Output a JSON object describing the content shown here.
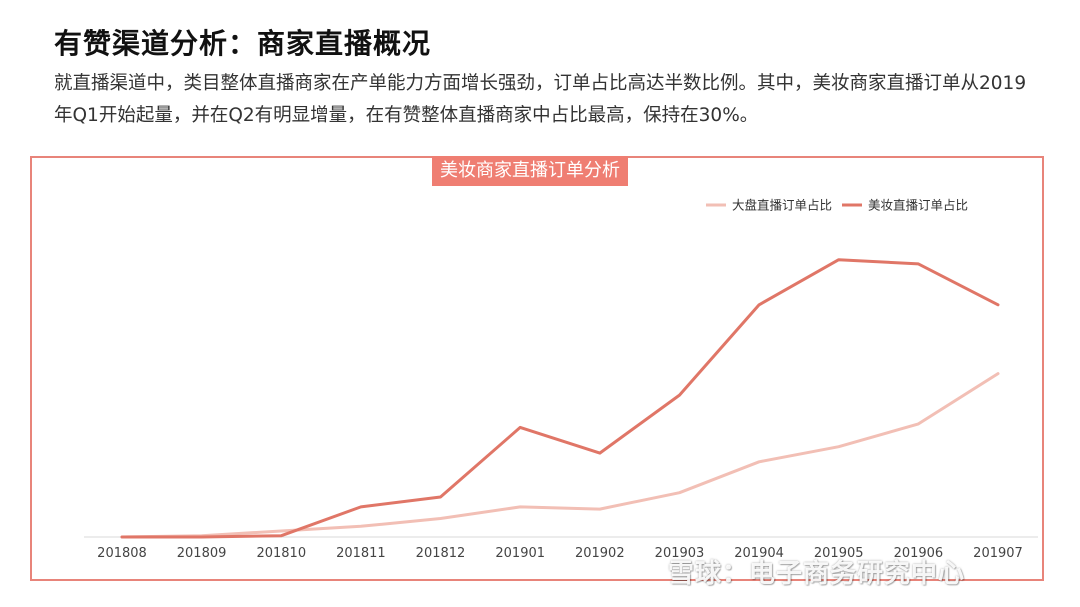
{
  "header": {
    "title": "有赞渠道分析：商家直播概况",
    "description": "就直播渠道中，类目整体直播商家在产单能力方面增长强劲，订单占比高达半数比例。其中，美妆商家直播订单从2019年Q1开始起量，并在Q2有明显增量，在有赞整体直播商家中占比最高，保持在30%。"
  },
  "watermark": "雪球：电子商务研究中心",
  "chart_data": {
    "type": "line",
    "title": "美妆商家直播订单分析",
    "categories": [
      "201808",
      "201809",
      "201810",
      "201811",
      "201812",
      "201901",
      "201902",
      "201903",
      "201904",
      "201905",
      "201906",
      "201907"
    ],
    "series": [
      {
        "name": "大盘直播订单占比",
        "color": "#f2bfb5",
        "values": [
          0.0,
          0.3,
          1.4,
          2.5,
          4.3,
          7.0,
          6.5,
          10.3,
          17.5,
          21.0,
          26.3,
          38.0
        ]
      },
      {
        "name": "美妆直播订单占比",
        "color": "#e07667",
        "values": [
          0.0,
          0.0,
          0.3,
          7.0,
          9.3,
          25.5,
          19.5,
          33.0,
          54.0,
          64.5,
          63.5,
          54.0
        ]
      }
    ],
    "ylim": [
      0,
      70
    ],
    "grid": false,
    "legend": "top-right",
    "xlabel": "",
    "ylabel": ""
  }
}
